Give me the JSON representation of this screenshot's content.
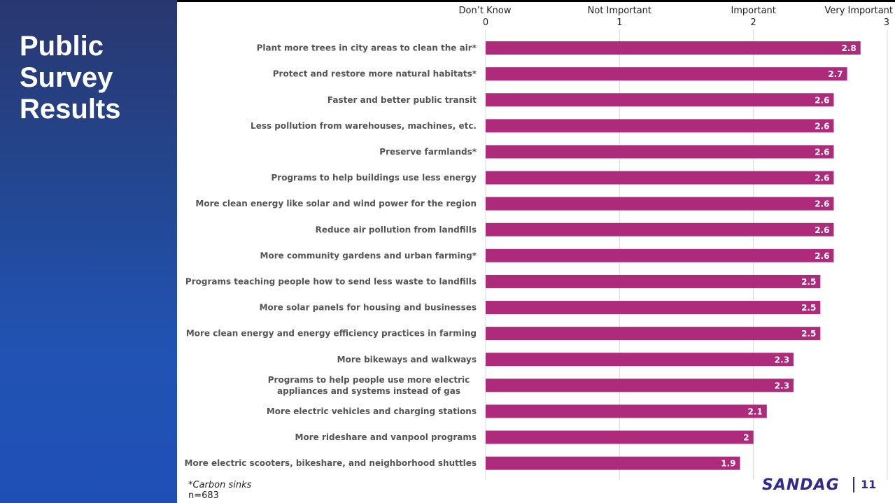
{
  "slide": {
    "title_lines": [
      "Public",
      "Survey",
      "Results"
    ],
    "footnote": "*Carbon sinks",
    "sample_size": "n=683",
    "logo_text": "SANDAG",
    "page_number": "11"
  },
  "colors": {
    "bar": "#ae2a7b",
    "sidebar_top": "#29376f",
    "sidebar_bottom": "#1f4fb5",
    "logo": "#2f2a8c"
  },
  "chart_data": {
    "type": "bar",
    "orientation": "horizontal",
    "xlim": [
      0,
      3
    ],
    "ticks": [
      {
        "value": 0,
        "number": "0",
        "label": "Don’t Know"
      },
      {
        "value": 1,
        "number": "1",
        "label": "Not Important"
      },
      {
        "value": 2,
        "number": "2",
        "label": "Important"
      },
      {
        "value": 3,
        "number": "3",
        "label": "Very Important"
      }
    ],
    "grid": true,
    "categories": [
      [
        "Plant more trees in city areas to clean the air*"
      ],
      [
        "Protect and restore more natural habitats*"
      ],
      [
        "Faster and better public transit"
      ],
      [
        "Less pollution from warehouses, machines, etc."
      ],
      [
        "Preserve farmlands*"
      ],
      [
        "Programs to help buildings use less energy"
      ],
      [
        "More clean energy like solar and wind power for the region"
      ],
      [
        "Reduce air pollution from landfills"
      ],
      [
        "More community gardens and urban farming*"
      ],
      [
        "Programs teaching people how to send less waste to landfills"
      ],
      [
        "More solar panels for housing and businesses"
      ],
      [
        "More clean energy and energy efficiency practices in farming"
      ],
      [
        "More bikeways and walkways"
      ],
      [
        "Programs to help people use more electric",
        "appliances and systems instead of gas"
      ],
      [
        "More electric vehicles and charging stations"
      ],
      [
        "More rideshare and vanpool programs"
      ],
      [
        "More electric scooters, bikeshare, and neighborhood shuttles"
      ]
    ],
    "values": [
      2.8,
      2.7,
      2.6,
      2.6,
      2.6,
      2.6,
      2.6,
      2.6,
      2.6,
      2.5,
      2.5,
      2.5,
      2.3,
      2.3,
      2.1,
      2,
      1.9
    ]
  }
}
